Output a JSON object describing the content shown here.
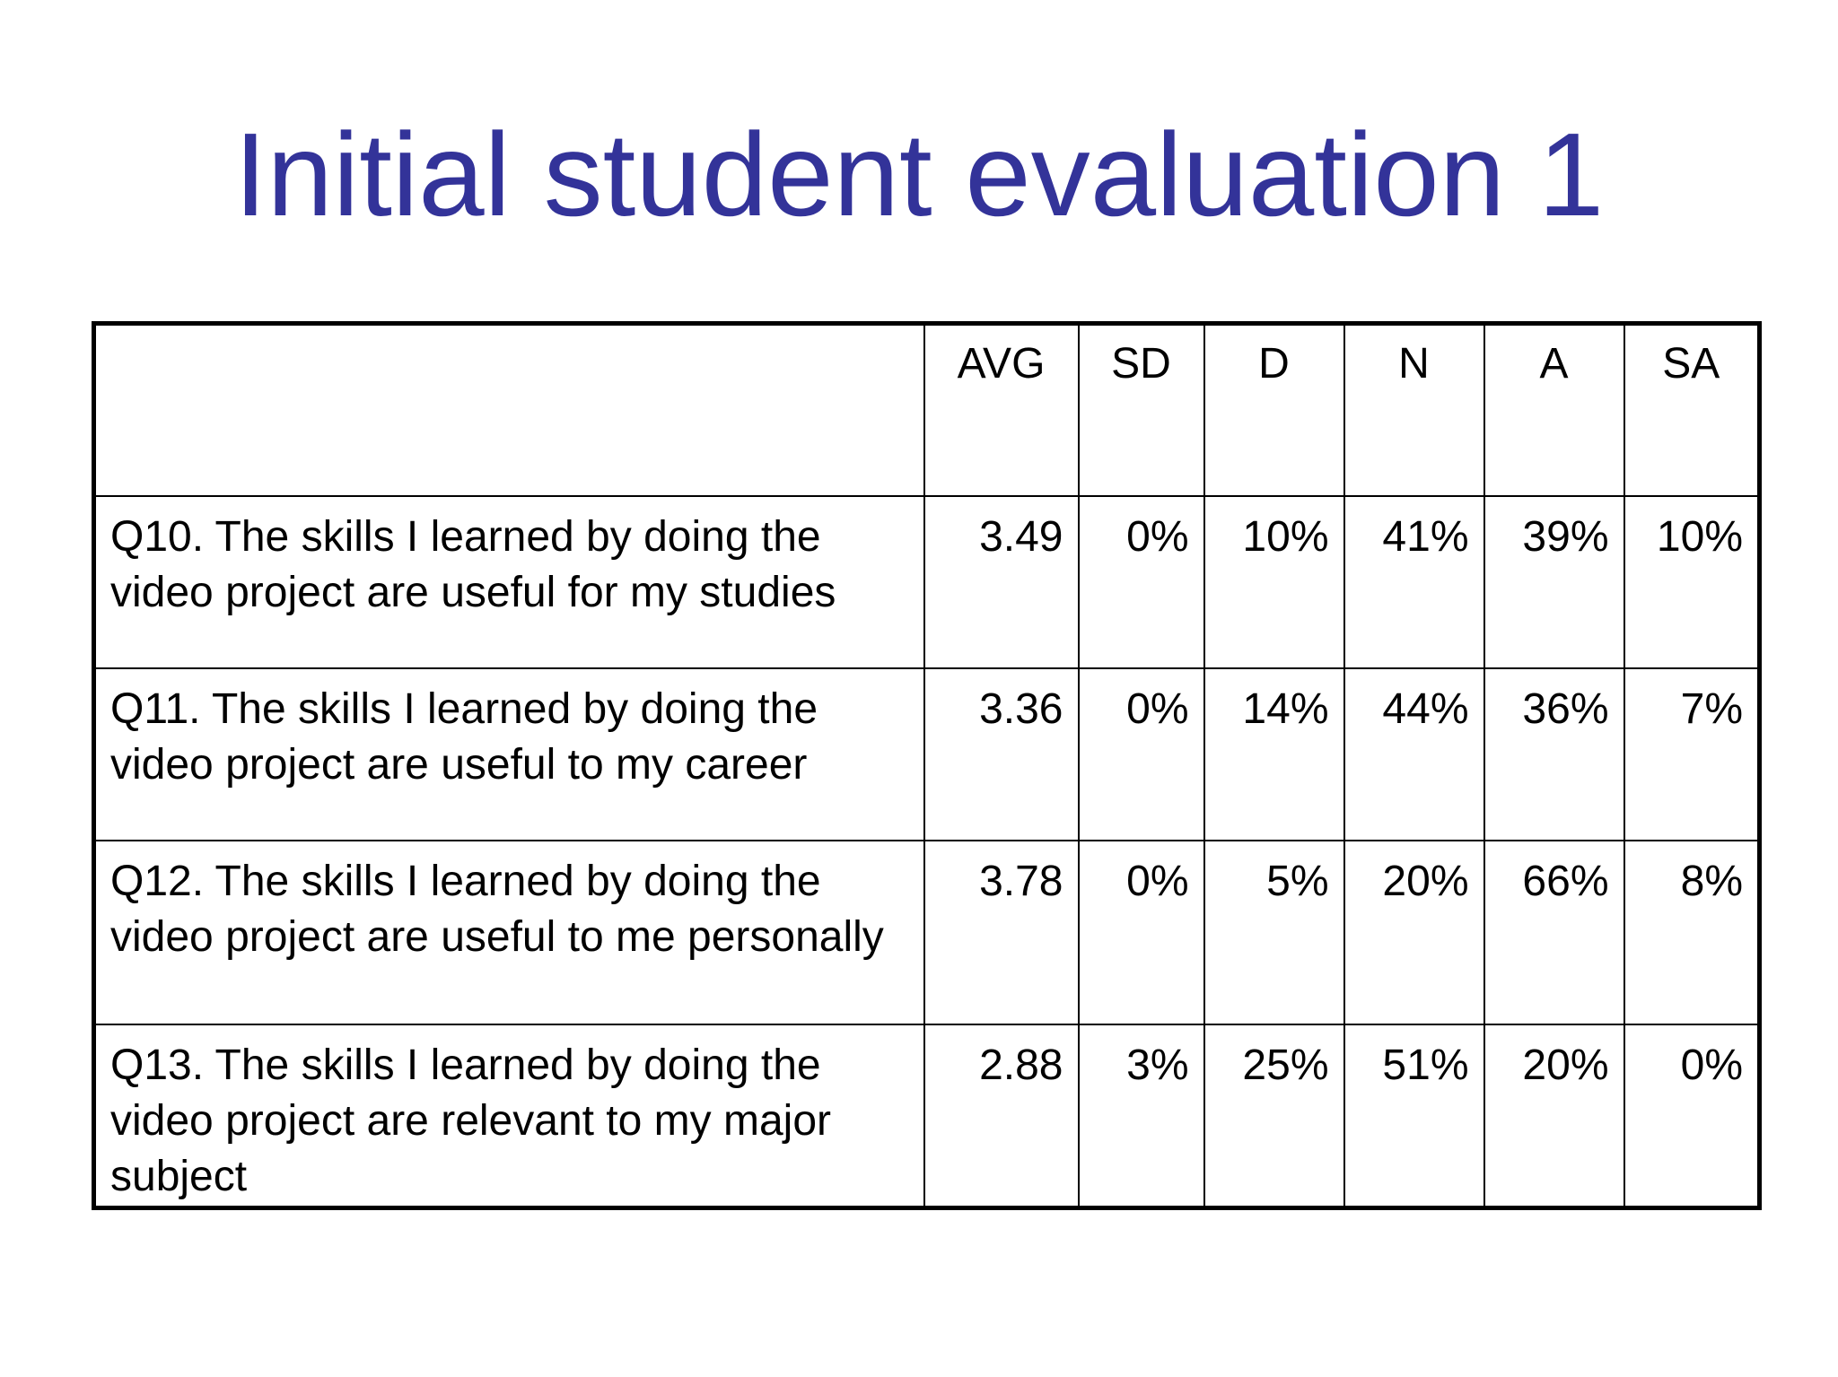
{
  "title": "Initial student evaluation 1",
  "table": {
    "headers": [
      "",
      "AVG",
      "SD",
      "D",
      "N",
      "A",
      "SA"
    ],
    "rows": [
      {
        "question": "Q10. The skills I learned by doing the video project are useful for my studies",
        "avg": "3.49",
        "sd": "0%",
        "d": "10%",
        "n": "41%",
        "a": "39%",
        "sa": "10%"
      },
      {
        "question": "Q11. The skills I learned by doing the video project are useful to my career",
        "avg": "3.36",
        "sd": "0%",
        "d": "14%",
        "n": "44%",
        "a": "36%",
        "sa": "7%"
      },
      {
        "question": "Q12. The skills I learned by doing the video project are useful to me personally",
        "avg": "3.78",
        "sd": "0%",
        "d": "5%",
        "n": "20%",
        "a": "66%",
        "sa": "8%"
      },
      {
        "question": "Q13. The skills I learned by doing the video project are relevant to my major subject",
        "avg": "2.88",
        "sd": "3%",
        "d": "25%",
        "n": "51%",
        "a": "20%",
        "sa": "0%"
      }
    ]
  },
  "colors": {
    "title": "#333399",
    "text": "#000000",
    "background": "#ffffff"
  }
}
